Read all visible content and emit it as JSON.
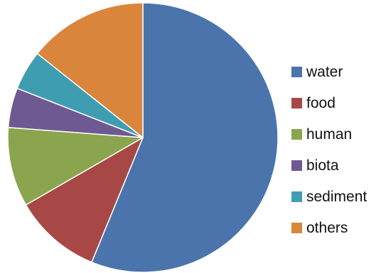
{
  "chart_data": {
    "type": "pie",
    "title": "",
    "legend_position": "right",
    "start_angle": "12 o'clock",
    "direction": "clockwise",
    "slices": [
      {
        "label": "water",
        "value": 59,
        "color": "#4a74ab"
      },
      {
        "label": "food",
        "value": 11,
        "color": "#a74846"
      },
      {
        "label": "human",
        "value": 10,
        "color": "#8aa54d"
      },
      {
        "label": "biota",
        "value": 5,
        "color": "#6e5993"
      },
      {
        "label": "sediment",
        "value": 5,
        "color": "#3f9db2"
      },
      {
        "label": "others",
        "value": 15,
        "color": "#d9853b"
      }
    ]
  }
}
